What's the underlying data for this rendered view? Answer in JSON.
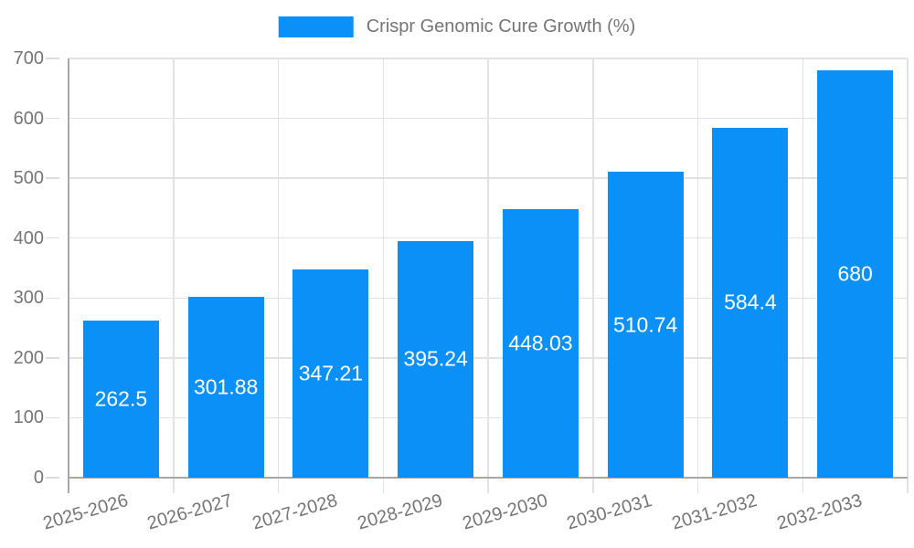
{
  "chart_data": {
    "type": "bar",
    "title": "Crispr Genomic Cure Growth (%)",
    "legend": {
      "position": "top",
      "label": "Crispr Genomic Cure Growth (%)"
    },
    "categories": [
      "2025-2026",
      "2026-2027",
      "2027-2028",
      "2028-2029",
      "2029-2030",
      "2030-2031",
      "2031-2032",
      "2032-2033"
    ],
    "values": [
      262.5,
      301.88,
      347.21,
      395.24,
      448.03,
      510.74,
      584.4,
      680
    ],
    "value_labels": [
      "262.5",
      "301.88",
      "347.21",
      "395.24",
      "448.03",
      "510.74",
      "584.4",
      "680"
    ],
    "xlabel": "",
    "ylabel": "",
    "ylim": [
      0,
      700
    ],
    "yticks": [
      0,
      100,
      200,
      300,
      400,
      500,
      600,
      700
    ],
    "grid": true,
    "x_label_rotation_deg": -16,
    "colors": {
      "bar": "#0a90f7",
      "bar_label_text": "#ffffff",
      "axis_text": "#757575",
      "grid_line": "#e2e2e2",
      "axis_line": "#a8a8a8",
      "background": "#ffffff"
    }
  }
}
